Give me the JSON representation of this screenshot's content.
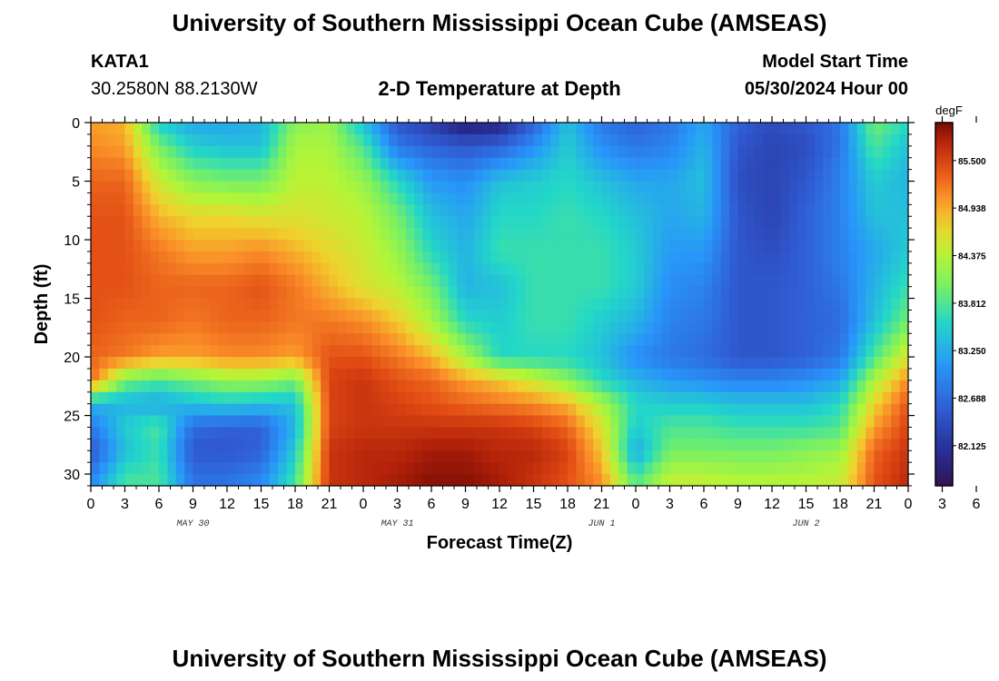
{
  "page": {
    "title": "University of Southern Mississippi Ocean Cube (AMSEAS)",
    "title_repeat": "University of Southern Mississippi Ocean Cube (AMSEAS)",
    "station": "KATA1",
    "coords": "30.2580N  88.2130W",
    "subtitle": "2-D Temperature at Depth",
    "model_label": "Model Start Time",
    "model_time": "05/30/2024 Hour 00"
  },
  "chart_data": {
    "type": "heatmap",
    "title": "2-D Temperature at Depth",
    "xlabel": "Forecast Time(Z)",
    "ylabel": "Depth (ft)",
    "x_hours_range": [
      0,
      72
    ],
    "y_range": [
      0,
      31
    ],
    "x_tick_labels": [
      "0",
      "3",
      "6",
      "9",
      "12",
      "15",
      "18",
      "21",
      "0",
      "3",
      "6",
      "9",
      "12",
      "15",
      "18",
      "21",
      "0",
      "3",
      "6",
      "9",
      "12",
      "15",
      "18",
      "21",
      "0",
      "3",
      "6",
      "9",
      "12",
      "15",
      "18",
      "21",
      "0"
    ],
    "y_ticks": [
      0,
      5,
      10,
      15,
      20,
      25,
      30
    ],
    "date_labels": [
      {
        "label": "MAY 30",
        "hour": 9
      },
      {
        "label": "MAY 31",
        "hour": 27
      },
      {
        "label": "JUN 1",
        "hour": 45
      },
      {
        "label": "JUN 2",
        "hour": 63
      }
    ],
    "colorbar": {
      "unit": "degF",
      "min": 81.65,
      "max": 85.95,
      "ticks": [
        "85.500",
        "84.938",
        "84.375",
        "83.812",
        "83.250",
        "82.688",
        "82.125"
      ],
      "tick_values": [
        85.5,
        84.938,
        84.375,
        83.812,
        83.25,
        82.688,
        82.125
      ]
    },
    "depth_rows": [
      0,
      2,
      5,
      8,
      11,
      14,
      17,
      20,
      22,
      24,
      26,
      28,
      31
    ],
    "time_cols": [
      0,
      3,
      6,
      9,
      12,
      15,
      18,
      21,
      24,
      27,
      30,
      33,
      36,
      39,
      42,
      45,
      48,
      51,
      54,
      57,
      60,
      63,
      66,
      69,
      72
    ],
    "temperature_degF": [
      [
        85.0,
        84.9,
        83.5,
        83.2,
        83.2,
        83.3,
        84.1,
        84.2,
        83.4,
        82.5,
        82.2,
        81.8,
        81.9,
        82.6,
        83.4,
        82.8,
        82.6,
        82.8,
        83.2,
        82.6,
        82.4,
        82.5,
        82.8,
        84.0,
        83.6
      ],
      [
        85.1,
        85.0,
        84.0,
        83.5,
        83.4,
        83.4,
        84.3,
        84.3,
        83.8,
        82.8,
        82.6,
        82.5,
        82.6,
        83.0,
        83.5,
        83.0,
        82.8,
        82.9,
        83.3,
        82.5,
        82.3,
        82.4,
        82.8,
        83.8,
        83.4
      ],
      [
        85.3,
        85.3,
        84.5,
        84.1,
        84.0,
        84.0,
        84.4,
        84.4,
        84.2,
        83.6,
        83.1,
        83.0,
        83.4,
        83.5,
        83.6,
        83.4,
        83.2,
        83.2,
        83.4,
        82.4,
        82.3,
        82.5,
        82.9,
        83.5,
        83.3
      ],
      [
        85.4,
        85.4,
        84.9,
        84.7,
        84.7,
        84.6,
        84.6,
        84.5,
        84.4,
        84.0,
        83.4,
        83.2,
        83.6,
        83.6,
        83.7,
        83.6,
        83.4,
        83.2,
        83.3,
        82.5,
        82.3,
        82.6,
        82.9,
        83.4,
        83.4
      ],
      [
        85.4,
        85.4,
        85.2,
        85.0,
        85.0,
        85.1,
        84.9,
        84.7,
        84.5,
        84.2,
        83.6,
        83.3,
        83.7,
        83.7,
        83.7,
        83.7,
        83.5,
        83.1,
        83.1,
        82.5,
        82.4,
        82.6,
        82.9,
        83.2,
        83.5
      ],
      [
        85.4,
        85.4,
        85.3,
        85.3,
        85.3,
        85.4,
        85.2,
        84.9,
        84.6,
        84.4,
        84.0,
        83.3,
        83.4,
        83.7,
        83.7,
        83.7,
        83.5,
        83.0,
        82.9,
        82.5,
        82.5,
        82.6,
        82.8,
        83.3,
        83.7
      ],
      [
        85.4,
        85.3,
        85.3,
        85.2,
        85.3,
        85.3,
        85.2,
        85.2,
        85.1,
        84.8,
        84.3,
        83.6,
        83.5,
        83.7,
        83.7,
        83.5,
        83.3,
        82.9,
        82.8,
        82.5,
        82.5,
        82.6,
        82.7,
        83.4,
        84.0
      ],
      [
        85.3,
        85.2,
        85.0,
        85.0,
        85.1,
        85.1,
        85.0,
        85.4,
        85.4,
        85.2,
        84.9,
        84.3,
        83.6,
        83.6,
        83.6,
        83.4,
        83.0,
        82.8,
        82.7,
        82.5,
        82.5,
        82.6,
        82.8,
        83.8,
        84.6
      ],
      [
        85.3,
        84.0,
        83.8,
        84.0,
        84.2,
        84.2,
        84.0,
        85.5,
        85.6,
        85.4,
        85.3,
        85.0,
        84.8,
        84.5,
        84.1,
        83.6,
        83.3,
        83.1,
        83.0,
        82.9,
        82.9,
        83.0,
        83.2,
        84.3,
        85.1
      ],
      [
        83.3,
        83.3,
        83.2,
        83.4,
        83.5,
        83.4,
        83.4,
        85.5,
        85.6,
        85.5,
        85.4,
        85.3,
        85.2,
        85.1,
        84.9,
        84.3,
        83.6,
        83.5,
        83.5,
        83.4,
        83.4,
        83.4,
        83.6,
        84.7,
        85.4
      ],
      [
        82.8,
        83.5,
        83.8,
        82.7,
        82.6,
        82.6,
        83.3,
        85.5,
        85.6,
        85.6,
        85.6,
        85.6,
        85.6,
        85.5,
        85.3,
        84.6,
        83.5,
        83.8,
        83.8,
        83.7,
        83.7,
        83.7,
        83.8,
        85.0,
        85.5
      ],
      [
        82.5,
        83.4,
        83.7,
        82.5,
        82.5,
        82.6,
        83.5,
        85.6,
        85.7,
        85.7,
        85.8,
        85.8,
        85.7,
        85.7,
        85.5,
        84.8,
        83.2,
        84.0,
        84.0,
        84.0,
        84.0,
        84.1,
        84.2,
        85.3,
        85.6
      ],
      [
        83.0,
        83.8,
        83.8,
        82.8,
        82.8,
        83.0,
        83.8,
        85.6,
        85.7,
        85.8,
        85.9,
        85.9,
        85.8,
        85.6,
        85.4,
        85.1,
        83.9,
        84.5,
        84.5,
        84.4,
        84.4,
        84.4,
        84.5,
        85.4,
        85.7
      ]
    ]
  }
}
